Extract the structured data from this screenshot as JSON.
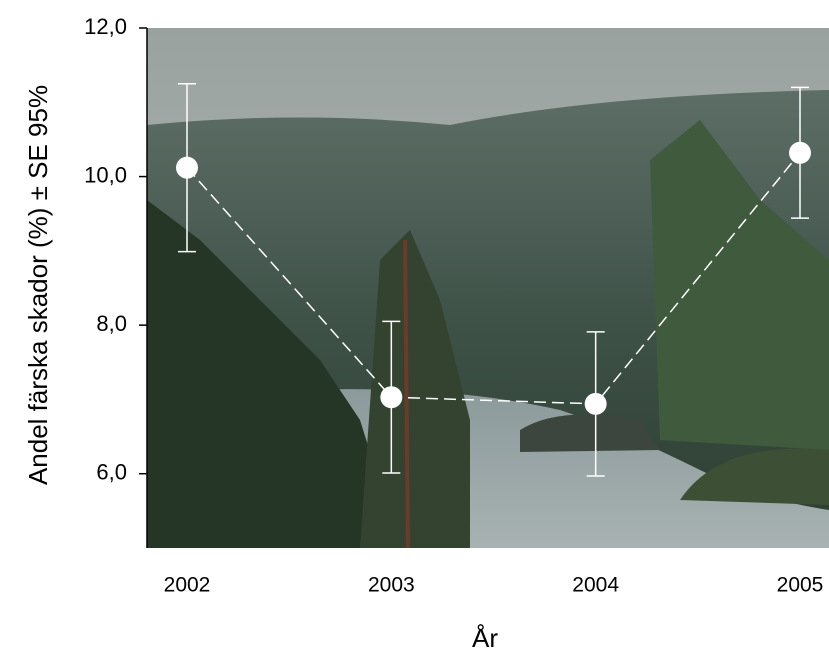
{
  "chart_data": {
    "type": "line",
    "xlabel": "År",
    "ylabel": "Andel färska skador (%) ± SE 95%",
    "categories": [
      "2002",
      "2003",
      "2004",
      "2005"
    ],
    "series": [
      {
        "color": "#ffffff",
        "values": [
          10.12,
          7.03,
          6.94,
          10.32
        ],
        "errors": [
          1.13,
          1.02,
          0.97,
          0.88
        ]
      }
    ],
    "ylim": [
      5,
      12
    ],
    "yticks": [
      {
        "value": 6,
        "label": "6,0"
      },
      {
        "value": 8,
        "label": "8,0"
      },
      {
        "value": 10,
        "label": "10,0"
      },
      {
        "value": 12,
        "label": "12,0"
      }
    ],
    "line_style": "dashed"
  }
}
